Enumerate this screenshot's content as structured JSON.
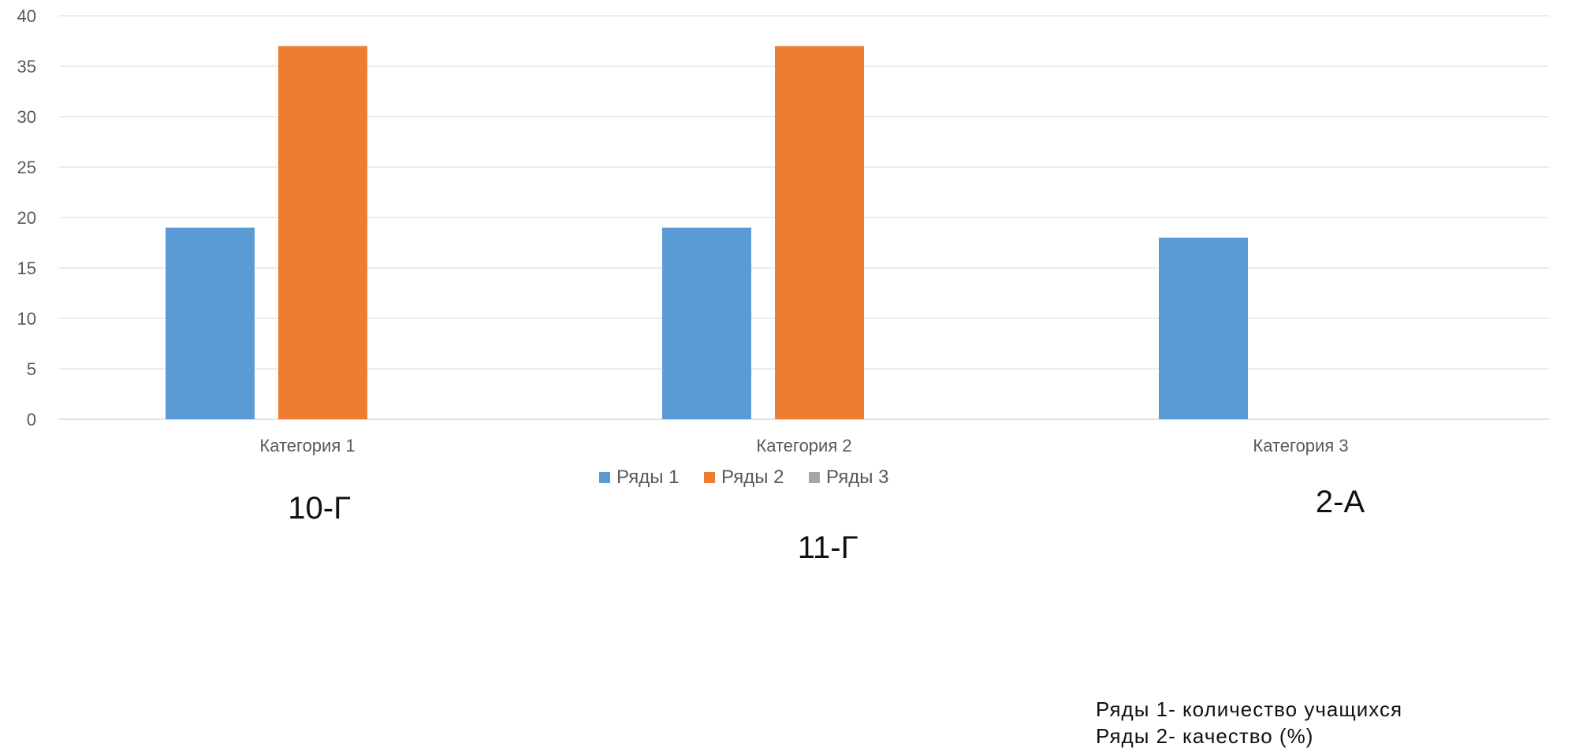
{
  "chart_data": {
    "type": "bar",
    "title": "",
    "categories": [
      "Категория 1",
      "Категория 2",
      "Категория 3"
    ],
    "series": [
      {
        "name": "Ряды 1",
        "color": "#5B9BD5",
        "values": [
          19,
          19,
          18
        ]
      },
      {
        "name": "Ряды 2",
        "color": "#ED7D31",
        "values": [
          37,
          37,
          null
        ]
      },
      {
        "name": "Ряды 3",
        "color": "#A5A5A5",
        "values": [
          null,
          null,
          null
        ]
      }
    ],
    "ylim": [
      0,
      40
    ],
    "yticks": [
      0,
      5,
      10,
      15,
      20,
      25,
      30,
      35,
      40
    ],
    "grid": true,
    "legend_position": "bottom"
  },
  "class_labels": [
    "10-Г",
    "11-Г",
    "2-А"
  ],
  "notes": {
    "line1": "Ряды 1- количество учащихся",
    "line2": "Ряды 2- качество (%)"
  }
}
